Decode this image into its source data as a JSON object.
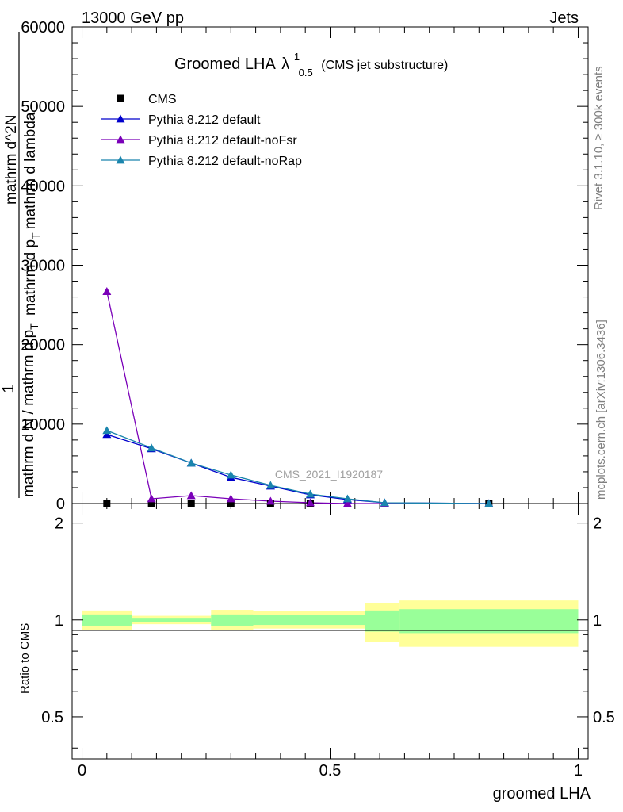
{
  "header": {
    "left": "13000 GeV pp",
    "right": "Jets"
  },
  "side_labels": {
    "rivet": "Rivet 3.1.10, ≥ 300k events",
    "mcplots": "mcplots.cern.ch [arXiv:1306.3436]"
  },
  "chart_data": [
    {
      "type": "line",
      "panel": "main",
      "title": "Groomed LHA",
      "title_symbol": "λ",
      "title_sup": "1",
      "title_sub": "0.5",
      "title_note": "(CMS jet substructure)",
      "watermark": "CMS_2021_I1920187",
      "ylabel_parts": [
        "1",
        "mathrm d N / mathrm d p",
        "T",
        "mathrm d^2N",
        "mathrm d p",
        "T",
        "mathrm d lambda"
      ],
      "ylim": [
        0,
        60000
      ],
      "xlim": [
        -0.02,
        1.02
      ],
      "yticks": [
        0,
        10000,
        20000,
        30000,
        40000,
        50000,
        60000
      ],
      "ytick_labels": [
        "0",
        "10000",
        "20000",
        "30000",
        "40000",
        "50000",
        "60000"
      ],
      "legend": [
        "CMS",
        "Pythia 8.212 default",
        "Pythia 8.212 default-noFsr",
        "Pythia 8.212 default-noRap"
      ],
      "legend_position": "top-left",
      "series": [
        {
          "name": "CMS",
          "color": "#000000",
          "marker": "square",
          "x": [
            0.05,
            0.14,
            0.22,
            0.3,
            0.38,
            0.46,
            0.82
          ],
          "y": [
            0,
            0,
            0,
            0,
            0,
            0,
            0
          ]
        },
        {
          "name": "Pythia 8.212 default",
          "color": "#0000cc",
          "marker": "triangle",
          "x": [
            0.05,
            0.14,
            0.22,
            0.3,
            0.38,
            0.46,
            0.535,
            0.61,
            0.82
          ],
          "y": [
            8700,
            6900,
            5100,
            3300,
            2200,
            1100,
            500,
            100,
            0
          ]
        },
        {
          "name": "Pythia 8.212 default-noFsr",
          "color": "#7a00b8",
          "marker": "triangle",
          "x": [
            0.05,
            0.14,
            0.22,
            0.3,
            0.38,
            0.46,
            0.535,
            0.61,
            0.82
          ],
          "y": [
            26700,
            600,
            1000,
            600,
            300,
            100,
            0,
            0,
            0
          ]
        },
        {
          "name": "Pythia 8.212 default-noRap",
          "color": "#1a85ad",
          "marker": "triangle",
          "x": [
            0.05,
            0.14,
            0.22,
            0.3,
            0.38,
            0.46,
            0.535,
            0.61,
            0.82
          ],
          "y": [
            9200,
            7000,
            5100,
            3600,
            2300,
            1200,
            600,
            100,
            0
          ]
        }
      ]
    },
    {
      "type": "area",
      "panel": "ratio",
      "ylabel": "Ratio to CMS",
      "xlabel": "groomed LHA",
      "xlim": [
        -0.02,
        1.02
      ],
      "ylim": [
        0.37,
        2.3
      ],
      "yscale": "log",
      "yticks": [
        0.5,
        1,
        2
      ],
      "ytick_labels": [
        "0.5",
        "1",
        "2"
      ],
      "xticks": [
        0,
        0.5,
        1
      ],
      "xtick_labels": [
        "0",
        "0.5",
        "1"
      ],
      "reference": 1,
      "bands": [
        {
          "x0": 0.0,
          "x1": 0.1,
          "yellow": [
            0.93,
            1.07
          ],
          "green": [
            0.96,
            1.04
          ]
        },
        {
          "x0": 0.1,
          "x1": 0.26,
          "yellow": [
            0.97,
            1.03
          ],
          "green": [
            0.985,
            1.015
          ]
        },
        {
          "x0": 0.26,
          "x1": 0.345,
          "yellow": [
            0.925,
            1.075
          ],
          "green": [
            0.96,
            1.04
          ]
        },
        {
          "x0": 0.345,
          "x1": 0.57,
          "yellow": [
            0.94,
            1.065
          ],
          "green": [
            0.965,
            1.035
          ]
        },
        {
          "x0": 0.57,
          "x1": 0.64,
          "yellow": [
            0.855,
            1.13
          ],
          "green": [
            0.92,
            1.07
          ]
        },
        {
          "x0": 0.64,
          "x1": 1.0,
          "yellow": [
            0.825,
            1.15
          ],
          "green": [
            0.91,
            1.08
          ]
        }
      ]
    }
  ]
}
